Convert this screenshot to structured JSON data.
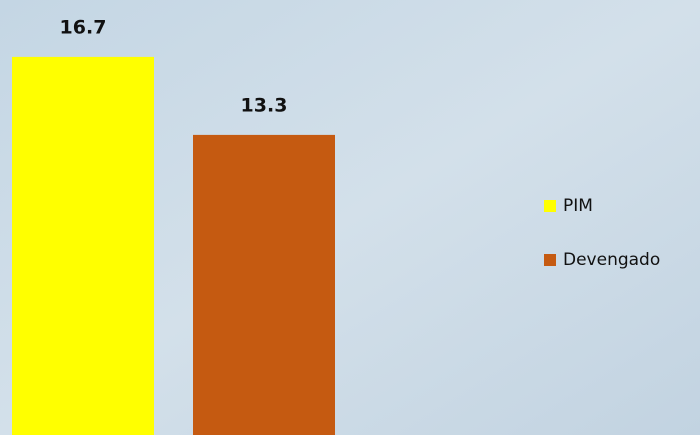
{
  "chart_data": {
    "type": "bar",
    "categories": [
      null
    ],
    "series": [
      {
        "name": "PIM",
        "color": "#ffff00",
        "values": [
          16.7
        ]
      },
      {
        "name": "Devengado",
        "color": "#c55a11",
        "values": [
          13.3
        ]
      }
    ]
  }
}
